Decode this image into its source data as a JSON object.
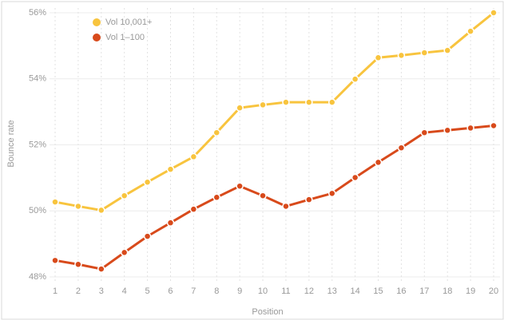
{
  "chart_data": {
    "type": "line",
    "x": [
      1,
      2,
      3,
      4,
      5,
      6,
      7,
      8,
      9,
      10,
      11,
      12,
      13,
      14,
      15,
      16,
      17,
      18,
      19,
      20
    ],
    "xlim": [
      1,
      20
    ],
    "xticks": [
      1,
      2,
      3,
      4,
      5,
      6,
      7,
      8,
      9,
      10,
      11,
      12,
      13,
      14,
      15,
      16,
      17,
      18,
      19,
      20
    ],
    "ylim": [
      48,
      56
    ],
    "yticks": [
      {
        "value": 48,
        "label": "48%"
      },
      {
        "value": 50,
        "label": "50%"
      },
      {
        "value": 52,
        "label": "52%"
      },
      {
        "value": 54,
        "label": "54%"
      },
      {
        "value": 56,
        "label": "56%"
      }
    ],
    "xlabel": "Position",
    "ylabel": "Bounce rate",
    "grid": true,
    "legend": "upper left",
    "series": [
      {
        "name": "Vol 10,001+",
        "color": "#f8c43e",
        "values": [
          50.27,
          50.14,
          50.02,
          50.46,
          50.87,
          51.26,
          51.64,
          52.37,
          53.12,
          53.21,
          53.29,
          53.29,
          53.29,
          53.99,
          54.64,
          54.71,
          54.79,
          54.86,
          55.44,
          56.0
        ]
      },
      {
        "name": "Vol 1–100",
        "color": "#d84a1b",
        "values": [
          48.5,
          48.38,
          48.24,
          48.74,
          49.23,
          49.64,
          50.05,
          50.41,
          50.75,
          50.46,
          50.14,
          50.34,
          50.53,
          51.01,
          51.47,
          51.91,
          52.37,
          52.44,
          52.51,
          52.58
        ]
      }
    ]
  }
}
